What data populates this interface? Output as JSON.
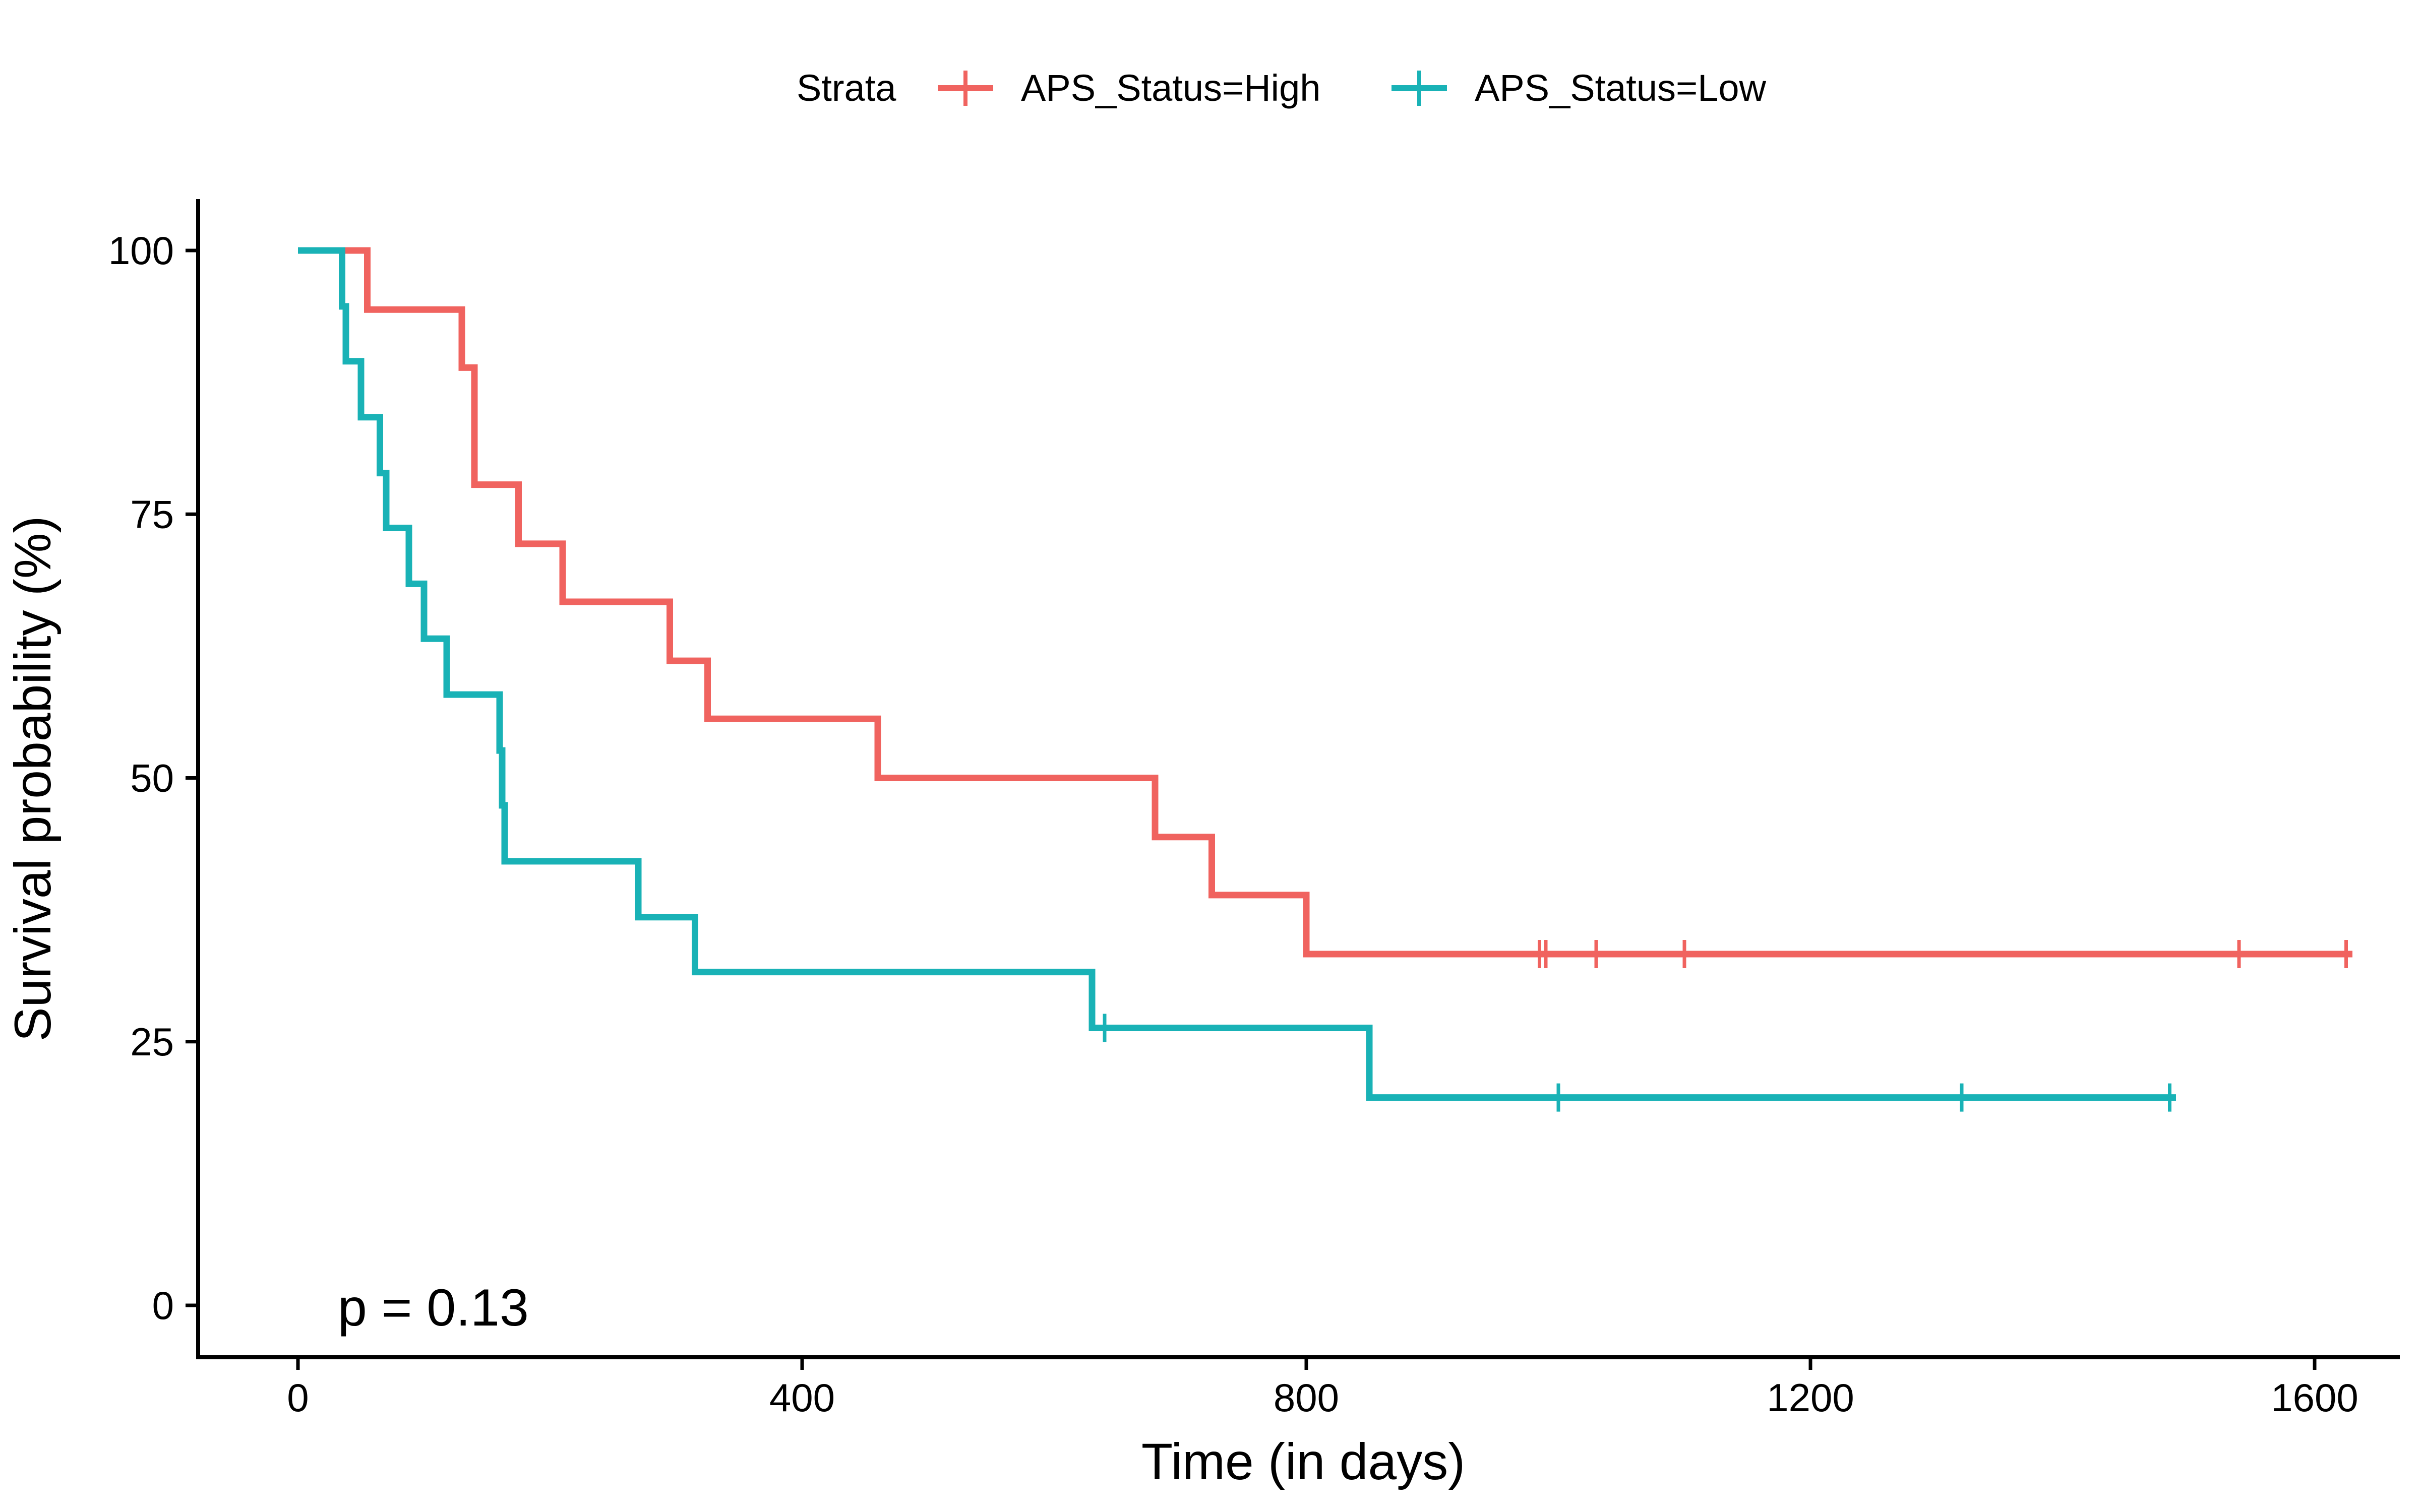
{
  "chart_data": {
    "type": "line",
    "subtype": "kaplan-meier step",
    "xlabel": "Time (in days)",
    "ylabel": "Survival probability (%)",
    "xlim": [
      -100,
      1680
    ],
    "ylim": [
      -5,
      105
    ],
    "x_ticks": [
      0,
      400,
      800,
      1200,
      1600
    ],
    "y_ticks": [
      0,
      25,
      50,
      75,
      100
    ],
    "legend": {
      "title": "Strata",
      "position": "top",
      "entries": [
        "APS_Status=High",
        "APS_Status=Low"
      ]
    },
    "annotation": "p = 0.13",
    "grid": false,
    "series": [
      {
        "name": "APS_Status=High",
        "color": "#F0635F",
        "steps": [
          [
            0,
            100
          ],
          [
            55,
            94.4
          ],
          [
            130,
            88.9
          ],
          [
            140,
            77.8
          ],
          [
            175,
            72.2
          ],
          [
            210,
            66.7
          ],
          [
            295,
            61.1
          ],
          [
            325,
            55.6
          ],
          [
            460,
            50.0
          ],
          [
            680,
            44.4
          ],
          [
            725,
            38.9
          ],
          [
            800,
            33.3
          ]
        ],
        "end": 1630,
        "censor": [
          985,
          990,
          1030,
          1100,
          1540,
          1625
        ]
      },
      {
        "name": "APS_Status=Low",
        "color": "#19B2B6",
        "steps": [
          [
            0,
            100
          ],
          [
            35,
            94.7
          ],
          [
            38,
            89.5
          ],
          [
            50,
            84.2
          ],
          [
            65,
            78.9
          ],
          [
            70,
            73.7
          ],
          [
            88,
            68.4
          ],
          [
            100,
            63.2
          ],
          [
            118,
            57.9
          ],
          [
            160,
            52.6
          ],
          [
            162,
            47.4
          ],
          [
            164,
            42.1
          ],
          [
            270,
            36.8
          ],
          [
            315,
            31.6
          ],
          [
            630,
            26.3
          ],
          [
            850,
            19.7
          ]
        ],
        "end": 1490,
        "censor": [
          640,
          1000,
          1320,
          1485
        ]
      }
    ]
  }
}
